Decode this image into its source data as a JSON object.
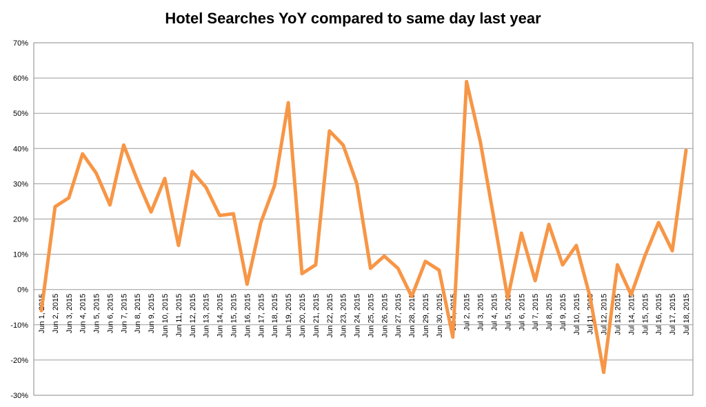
{
  "chart_data": {
    "type": "line",
    "title": "Hotel Searches YoY compared to same day last year",
    "xlabel": "",
    "ylabel": "",
    "ylim": [
      -30,
      70
    ],
    "y_ticks": [
      "70%",
      "60%",
      "50%",
      "40%",
      "30%",
      "20%",
      "10%",
      "0%",
      "-10%",
      "-20%",
      "-30%"
    ],
    "grid": true,
    "legend": "none",
    "line_color": "#F79646",
    "categories": [
      "Jun 1, 2015",
      "Jun 2, 2015",
      "Jun 3, 2015",
      "Jun 4, 2015",
      "Jun 5, 2015",
      "Jun 6, 2015",
      "Jun 7, 2015",
      "Jun 8, 2015",
      "Jun 9, 2015",
      "Jun 10, 2015",
      "Jun 11, 2015",
      "Jun 12, 2015",
      "Jun 13, 2015",
      "Jun 14, 2015",
      "Jun 15, 2015",
      "Jun 16, 2015",
      "Jun 17, 2015",
      "Jun 18, 2015",
      "Jun 19, 2015",
      "Jun 20, 2015",
      "Jun 21, 2015",
      "Jun 22, 2015",
      "Jun 23, 2015",
      "Jun 24, 2015",
      "Jun 25, 2015",
      "Jun 26, 2015",
      "Jun 27, 2015",
      "Jun 28, 2015",
      "Jun 29, 2015",
      "Jun 30, 2015",
      "Jul 1, 2015",
      "Jul 2, 2015",
      "Jul 3, 2015",
      "Jul 4, 2015",
      "Jul 5, 2015",
      "Jul 6, 2015",
      "Jul 7, 2015",
      "Jul 8, 2015",
      "Jul 9, 2015",
      "Jul 10, 2015",
      "Jul 11, 2015",
      "Jul 12, 2015",
      "Jul 13, 2015",
      "Jul 14, 2015",
      "Jul 15, 2015",
      "Jul 16, 2015",
      "Jul 17, 2015",
      "Jul 18, 2015"
    ],
    "series": [
      {
        "values": [
          -6,
          23.5,
          26,
          38.5,
          33,
          24,
          41,
          31,
          22,
          31.5,
          12.5,
          33.5,
          29,
          21,
          21.5,
          1.5,
          19,
          29.5,
          53,
          4.5,
          7,
          45,
          41,
          30,
          6,
          9.5,
          6,
          -2,
          8,
          5.5,
          -13.5,
          59,
          42,
          20,
          -2.5,
          16,
          2.5,
          18.5,
          7,
          12.5,
          -2,
          -23.5,
          7,
          -1.5,
          9.5,
          19,
          11,
          39.5
        ]
      }
    ]
  }
}
